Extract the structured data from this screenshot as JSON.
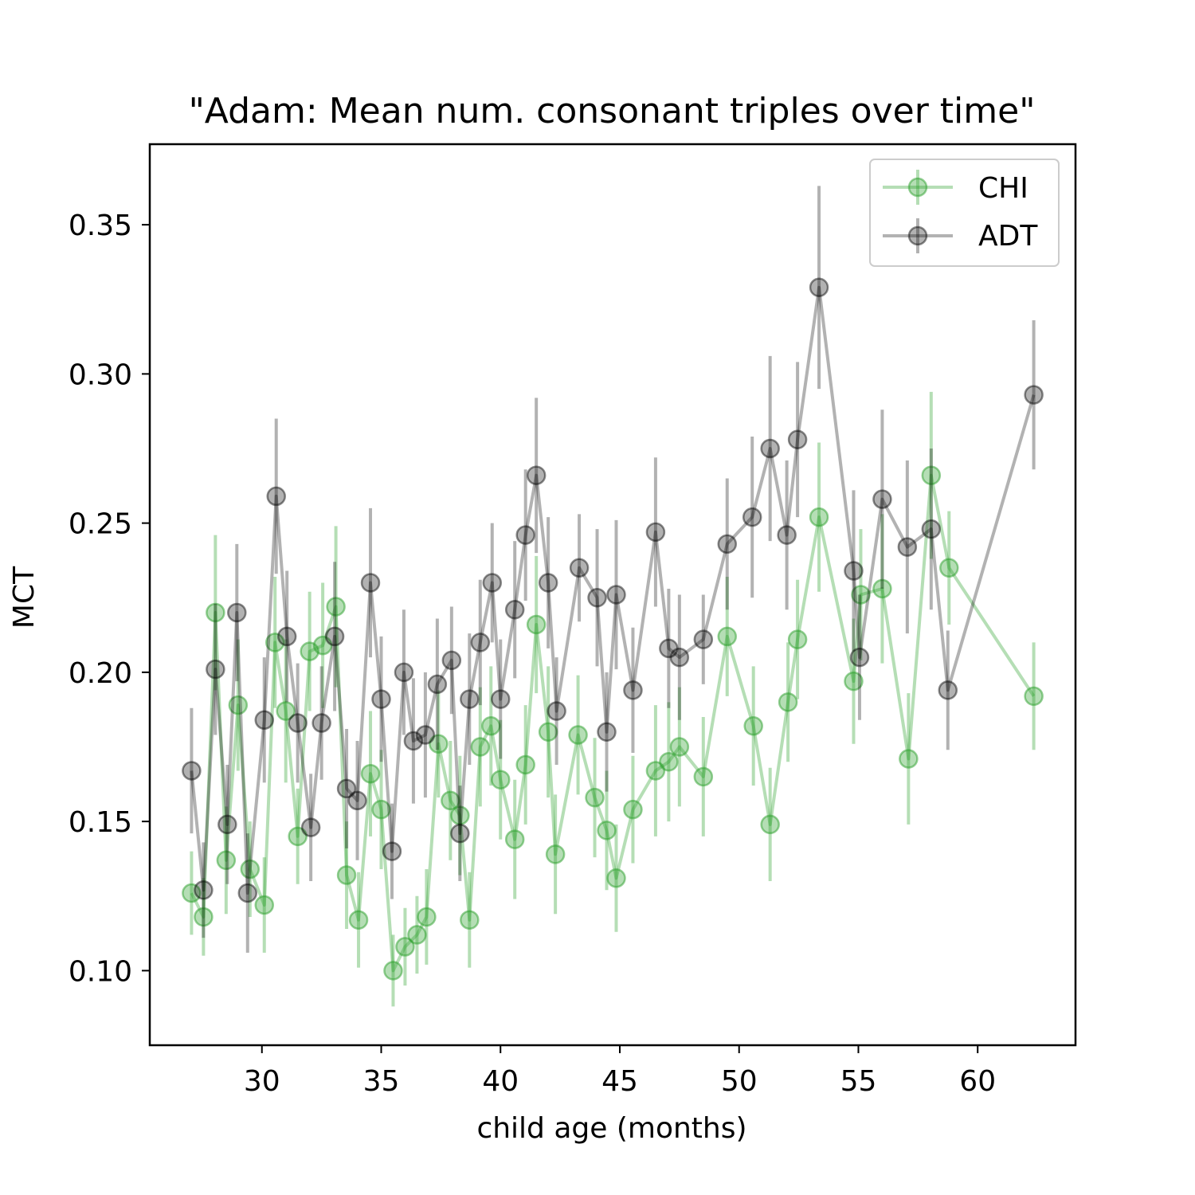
{
  "chart_data": {
    "type": "line",
    "title": "\"Adam: Mean num. consonant triples over time\"",
    "xlabel": "child age (months)",
    "ylabel": "MCT",
    "xlim": [
      25.3,
      64.1
    ],
    "ylim": [
      0.075,
      0.377
    ],
    "xticks": [
      30,
      35,
      40,
      45,
      50,
      55,
      60
    ],
    "yticks": [
      0.1,
      0.15,
      0.2,
      0.25,
      0.3,
      0.35
    ],
    "ytick_labels": [
      "0.10",
      "0.15",
      "0.20",
      "0.25",
      "0.30",
      "0.35"
    ],
    "grid": false,
    "legend_position": "top-right",
    "error_bars": true,
    "series": [
      {
        "name": "CHI",
        "color": "#2ca02c",
        "opacity": 0.35,
        "points": [
          [
            27.05,
            0.126,
            0.014
          ],
          [
            27.55,
            0.118,
            0.013
          ],
          [
            28.05,
            0.22,
            0.026
          ],
          [
            28.5,
            0.137,
            0.018
          ],
          [
            29.0,
            0.189,
            0.022
          ],
          [
            29.5,
            0.134,
            0.016
          ],
          [
            30.1,
            0.122,
            0.016
          ],
          [
            30.55,
            0.21,
            0.022
          ],
          [
            31.0,
            0.187,
            0.024
          ],
          [
            31.5,
            0.145,
            0.016
          ],
          [
            32.0,
            0.207,
            0.02
          ],
          [
            32.55,
            0.209,
            0.021
          ],
          [
            33.1,
            0.222,
            0.027
          ],
          [
            33.55,
            0.132,
            0.018
          ],
          [
            34.05,
            0.117,
            0.016
          ],
          [
            34.55,
            0.166,
            0.021
          ],
          [
            35.0,
            0.154,
            0.02
          ],
          [
            35.5,
            0.1,
            0.012
          ],
          [
            36.0,
            0.108,
            0.013
          ],
          [
            36.5,
            0.112,
            0.013
          ],
          [
            36.9,
            0.118,
            0.016
          ],
          [
            37.4,
            0.176,
            0.018
          ],
          [
            37.9,
            0.157,
            0.02
          ],
          [
            38.3,
            0.152,
            0.02
          ],
          [
            38.7,
            0.117,
            0.016
          ],
          [
            39.15,
            0.175,
            0.02
          ],
          [
            39.6,
            0.182,
            0.02
          ],
          [
            40.0,
            0.164,
            0.02
          ],
          [
            40.6,
            0.144,
            0.02
          ],
          [
            41.05,
            0.169,
            0.02
          ],
          [
            41.5,
            0.216,
            0.023
          ],
          [
            42.0,
            0.18,
            0.022
          ],
          [
            42.3,
            0.139,
            0.02
          ],
          [
            43.25,
            0.179,
            0.02
          ],
          [
            43.95,
            0.158,
            0.02
          ],
          [
            44.45,
            0.147,
            0.02
          ],
          [
            44.85,
            0.131,
            0.018
          ],
          [
            45.55,
            0.154,
            0.018
          ],
          [
            46.5,
            0.167,
            0.022
          ],
          [
            47.05,
            0.17,
            0.02
          ],
          [
            47.5,
            0.175,
            0.02
          ],
          [
            48.5,
            0.165,
            0.02
          ],
          [
            49.5,
            0.212,
            0.02
          ],
          [
            50.6,
            0.182,
            0.02
          ],
          [
            51.3,
            0.149,
            0.019
          ],
          [
            52.05,
            0.19,
            0.02
          ],
          [
            52.45,
            0.211,
            0.02
          ],
          [
            53.35,
            0.252,
            0.025
          ],
          [
            54.8,
            0.197,
            0.021
          ],
          [
            55.1,
            0.226,
            0.022
          ],
          [
            56.0,
            0.228,
            0.025
          ],
          [
            57.1,
            0.171,
            0.022
          ],
          [
            58.05,
            0.266,
            0.028
          ],
          [
            58.8,
            0.235,
            0.019
          ],
          [
            62.35,
            0.192,
            0.018
          ]
        ]
      },
      {
        "name": "ADT",
        "color": "#000000",
        "opacity": 0.3,
        "points": [
          [
            27.05,
            0.167,
            0.021
          ],
          [
            27.55,
            0.127,
            0.016
          ],
          [
            28.05,
            0.201,
            0.022
          ],
          [
            28.55,
            0.149,
            0.02
          ],
          [
            28.95,
            0.22,
            0.023
          ],
          [
            29.4,
            0.126,
            0.02
          ],
          [
            30.1,
            0.184,
            0.021
          ],
          [
            30.6,
            0.259,
            0.026
          ],
          [
            31.05,
            0.212,
            0.022
          ],
          [
            31.5,
            0.183,
            0.02
          ],
          [
            32.05,
            0.148,
            0.018
          ],
          [
            32.5,
            0.183,
            0.019
          ],
          [
            33.05,
            0.212,
            0.025
          ],
          [
            33.55,
            0.161,
            0.02
          ],
          [
            34.0,
            0.157,
            0.02
          ],
          [
            34.55,
            0.23,
            0.025
          ],
          [
            35.0,
            0.191,
            0.021
          ],
          [
            35.45,
            0.14,
            0.016
          ],
          [
            35.95,
            0.2,
            0.021
          ],
          [
            36.35,
            0.177,
            0.021
          ],
          [
            36.85,
            0.179,
            0.021
          ],
          [
            37.35,
            0.196,
            0.022
          ],
          [
            37.95,
            0.204,
            0.018
          ],
          [
            38.3,
            0.146,
            0.016
          ],
          [
            38.7,
            0.191,
            0.022
          ],
          [
            39.15,
            0.21,
            0.021
          ],
          [
            39.65,
            0.23,
            0.02
          ],
          [
            40.0,
            0.191,
            0.02
          ],
          [
            40.6,
            0.221,
            0.023
          ],
          [
            41.05,
            0.246,
            0.022
          ],
          [
            41.5,
            0.266,
            0.026
          ],
          [
            42.0,
            0.23,
            0.022
          ],
          [
            42.35,
            0.187,
            0.018
          ],
          [
            43.3,
            0.235,
            0.018
          ],
          [
            44.05,
            0.225,
            0.023
          ],
          [
            44.45,
            0.18,
            0.02
          ],
          [
            44.85,
            0.226,
            0.025
          ],
          [
            45.55,
            0.194,
            0.021
          ],
          [
            46.5,
            0.247,
            0.025
          ],
          [
            47.05,
            0.208,
            0.02
          ],
          [
            47.5,
            0.205,
            0.021
          ],
          [
            48.5,
            0.211,
            0.015
          ],
          [
            49.5,
            0.243,
            0.022
          ],
          [
            50.55,
            0.252,
            0.027
          ],
          [
            51.3,
            0.275,
            0.031
          ],
          [
            52.0,
            0.246,
            0.025
          ],
          [
            52.45,
            0.278,
            0.026
          ],
          [
            53.35,
            0.329,
            0.034
          ],
          [
            54.8,
            0.234,
            0.027
          ],
          [
            55.05,
            0.205,
            0.021
          ],
          [
            56.0,
            0.258,
            0.03
          ],
          [
            57.05,
            0.242,
            0.029
          ],
          [
            58.05,
            0.248,
            0.027
          ],
          [
            58.75,
            0.194,
            0.02
          ],
          [
            62.35,
            0.293,
            0.025
          ]
        ]
      }
    ]
  }
}
